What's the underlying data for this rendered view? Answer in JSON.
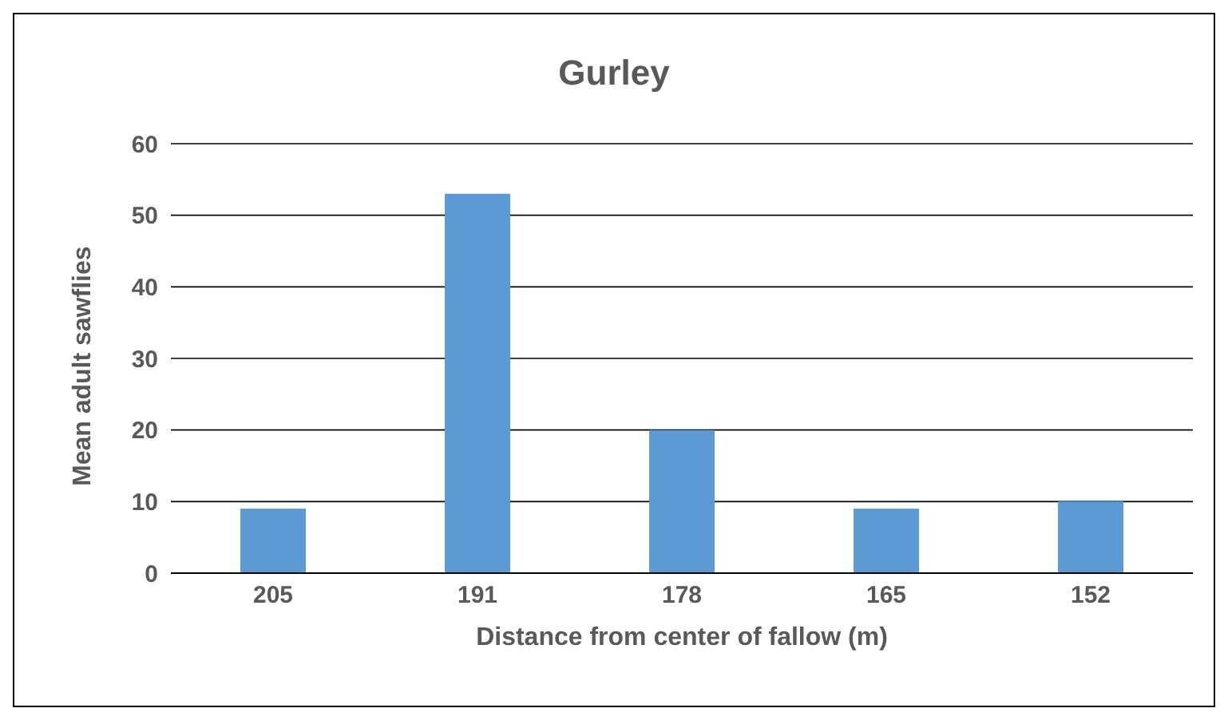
{
  "chart_data": {
    "type": "bar",
    "title": "Gurley",
    "xlabel": "Distance from center of fallow (m)",
    "ylabel": "Mean adult sawflies",
    "categories": [
      "205",
      "191",
      "178",
      "165",
      "152"
    ],
    "values": [
      9,
      53,
      20,
      9,
      10
    ],
    "color": "#5b9bd5",
    "ylim": [
      0,
      60
    ],
    "yticks": [
      0,
      10,
      20,
      30,
      40,
      50,
      60
    ],
    "grid": "y"
  }
}
